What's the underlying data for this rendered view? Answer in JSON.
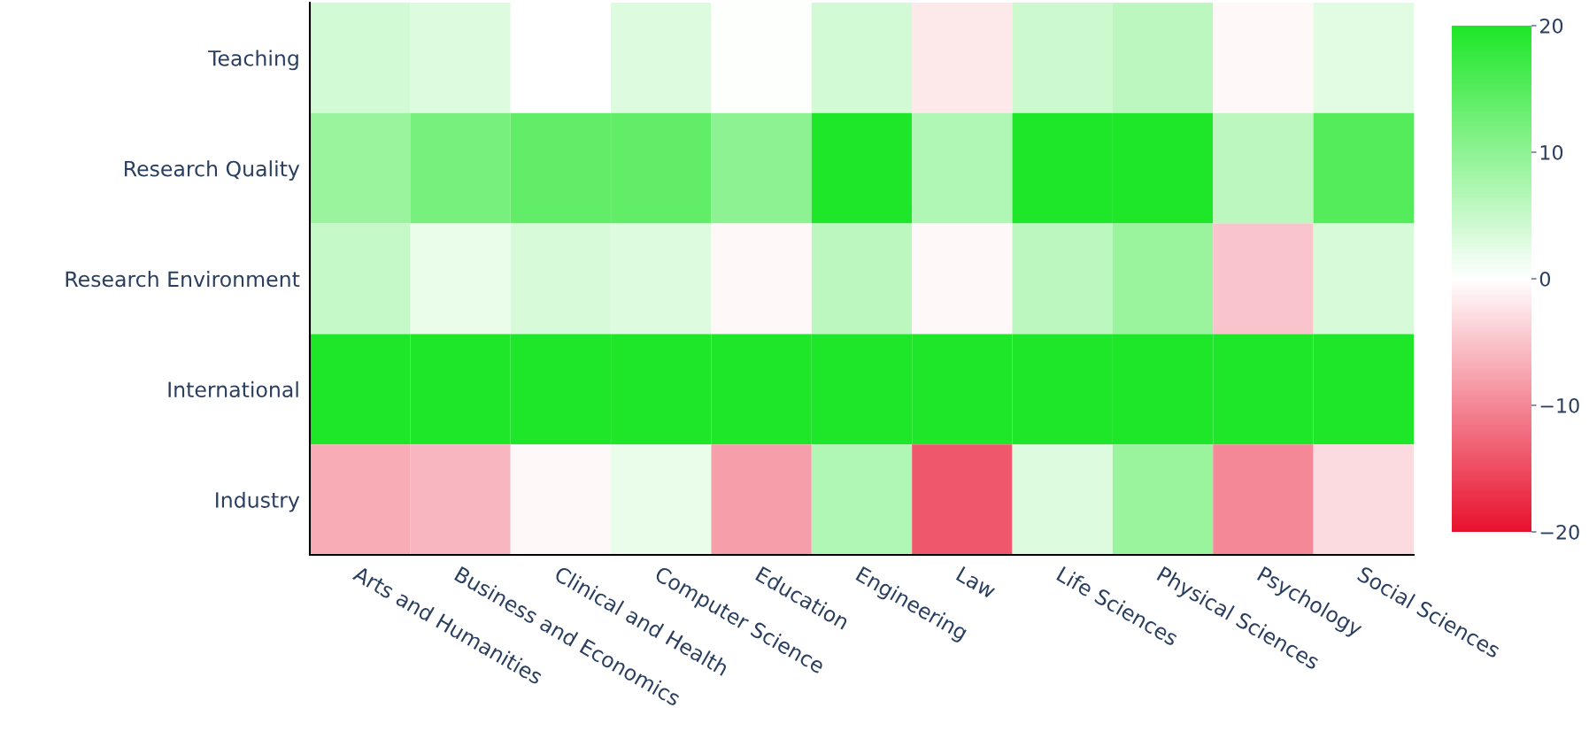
{
  "chart_data": {
    "type": "heatmap",
    "categories": [
      "Arts and Humanities",
      "Business and Economics",
      "Clinical and Health",
      "Computer Science",
      "Education",
      "Engineering",
      "Law",
      "Life Sciences",
      "Physical Sciences",
      "Psychology",
      "Social Sciences"
    ],
    "y_categories": [
      "Teaching",
      "Research Quality",
      "Research Environment",
      "International",
      "Industry"
    ],
    "cells": [
      [
        4,
        3,
        0,
        3,
        0.3,
        4,
        -2,
        4.5,
        6,
        -0.5,
        2.5
      ],
      [
        9,
        12,
        14,
        14,
        10,
        20,
        7,
        20,
        20,
        6,
        15
      ],
      [
        5,
        2,
        3.5,
        3,
        -0.5,
        6,
        -0.5,
        6,
        9,
        -5,
        3.5
      ],
      [
        20,
        20,
        20,
        20,
        20,
        20,
        20,
        20,
        20,
        20,
        20
      ],
      [
        -7,
        -6,
        -0.5,
        2,
        -8,
        7,
        -14,
        3,
        9,
        -10,
        -3
      ]
    ],
    "clim": [
      -20,
      20
    ],
    "cticks": [
      {
        "value": -20,
        "label": "−20"
      },
      {
        "value": -10,
        "label": "−10"
      },
      0,
      10,
      20
    ]
  }
}
